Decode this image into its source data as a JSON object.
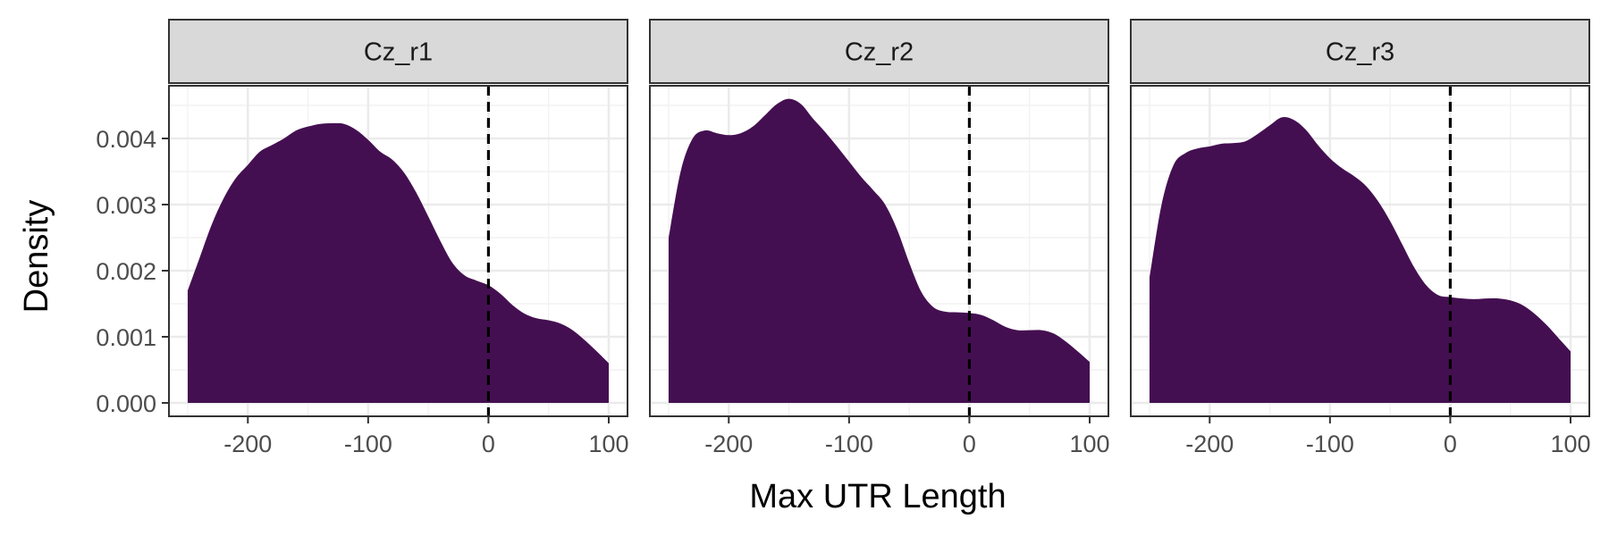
{
  "chart_data": {
    "type": "area",
    "xlabel": "Max UTR Length",
    "ylabel": "Density",
    "xlim": [
      -250,
      100
    ],
    "ylim": [
      0,
      0.0048
    ],
    "x_ticks": [
      -200,
      -100,
      0,
      100
    ],
    "x_tick_labels": [
      "-200",
      "-100",
      "0",
      "100"
    ],
    "y_ticks": [
      0,
      0.001,
      0.002,
      0.003,
      0.004
    ],
    "y_tick_labels": [
      "0.000",
      "0.001",
      "0.002",
      "0.003",
      "0.004"
    ],
    "reference_line_x": 0,
    "grid": true,
    "legend": "none",
    "fill_color": "#440f51",
    "strip_color": "#d9d9d9",
    "panels": [
      {
        "title": "Cz_r1",
        "x": [
          -250,
          -240,
          -230,
          -220,
          -210,
          -200,
          -190,
          -180,
          -170,
          -160,
          -150,
          -140,
          -130,
          -120,
          -110,
          -100,
          -90,
          -80,
          -70,
          -60,
          -50,
          -40,
          -30,
          -20,
          -10,
          0,
          10,
          20,
          30,
          40,
          50,
          60,
          70,
          80,
          90,
          100
        ],
        "density": [
          0.0017,
          0.0022,
          0.0027,
          0.0031,
          0.0034,
          0.0036,
          0.0038,
          0.0039,
          0.004,
          0.00412,
          0.00418,
          0.00422,
          0.00423,
          0.00422,
          0.00413,
          0.00398,
          0.0038,
          0.00368,
          0.00348,
          0.00318,
          0.00282,
          0.00245,
          0.00212,
          0.00193,
          0.00185,
          0.00178,
          0.00165,
          0.00148,
          0.00135,
          0.00128,
          0.00125,
          0.0012,
          0.0011,
          0.00095,
          0.00078,
          0.0006
        ]
      },
      {
        "title": "Cz_r2",
        "x": [
          -250,
          -240,
          -230,
          -220,
          -210,
          -200,
          -190,
          -180,
          -170,
          -160,
          -150,
          -140,
          -130,
          -120,
          -110,
          -100,
          -90,
          -80,
          -70,
          -60,
          -50,
          -40,
          -30,
          -20,
          -10,
          0,
          10,
          20,
          30,
          40,
          50,
          60,
          70,
          80,
          90,
          100
        ],
        "density": [
          0.0025,
          0.0035,
          0.004,
          0.00412,
          0.00408,
          0.00405,
          0.00408,
          0.00418,
          0.00435,
          0.00452,
          0.0046,
          0.00452,
          0.0043,
          0.0041,
          0.00388,
          0.00365,
          0.00342,
          0.00322,
          0.003,
          0.00262,
          0.00212,
          0.00168,
          0.00145,
          0.00138,
          0.00137,
          0.00136,
          0.00133,
          0.00125,
          0.00115,
          0.0011,
          0.0011,
          0.0011,
          0.00105,
          0.00093,
          0.00078,
          0.00062
        ]
      },
      {
        "title": "Cz_r3",
        "x": [
          -250,
          -240,
          -230,
          -220,
          -210,
          -200,
          -190,
          -180,
          -170,
          -160,
          -150,
          -140,
          -130,
          -120,
          -110,
          -100,
          -90,
          -80,
          -70,
          -60,
          -50,
          -40,
          -30,
          -20,
          -10,
          0,
          10,
          20,
          30,
          40,
          50,
          60,
          70,
          80,
          90,
          100
        ],
        "density": [
          0.0019,
          0.003,
          0.0036,
          0.00378,
          0.00385,
          0.00388,
          0.00392,
          0.00393,
          0.00396,
          0.00407,
          0.0042,
          0.00432,
          0.00428,
          0.00413,
          0.0039,
          0.0037,
          0.00355,
          0.00343,
          0.00328,
          0.00305,
          0.00275,
          0.0024,
          0.00205,
          0.00178,
          0.00163,
          0.0016,
          0.00158,
          0.00157,
          0.00158,
          0.00158,
          0.00155,
          0.00148,
          0.00135,
          0.00118,
          0.00098,
          0.00078
        ]
      }
    ]
  }
}
